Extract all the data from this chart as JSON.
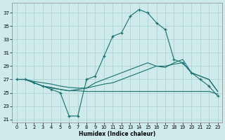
{
  "title": "",
  "xlabel": "Humidex (Indice chaleur)",
  "xlim": [
    -0.5,
    23.5
  ],
  "ylim": [
    20.5,
    38.5
  ],
  "yticks": [
    21,
    23,
    25,
    27,
    29,
    31,
    33,
    35,
    37
  ],
  "xticks": [
    0,
    1,
    2,
    3,
    4,
    5,
    6,
    7,
    8,
    9,
    10,
    11,
    12,
    13,
    14,
    15,
    16,
    17,
    18,
    19,
    20,
    21,
    22,
    23
  ],
  "bg_color": "#ceeaea",
  "line_color": "#1a7070",
  "grid_color": "#aacfcf",
  "lines": [
    {
      "x": [
        0,
        1,
        2,
        3,
        4,
        5,
        6,
        7,
        8,
        9,
        10,
        11,
        12,
        13,
        14,
        15,
        16,
        17,
        18,
        19,
        20,
        21,
        22,
        23
      ],
      "y": [
        27,
        27,
        26.5,
        26,
        25.5,
        25,
        21.5,
        21.5,
        27,
        27.5,
        30.5,
        33.5,
        34,
        36.5,
        37.5,
        37,
        35.5,
        34.5,
        30,
        29.5,
        28,
        27,
        26,
        24.5
      ],
      "marker": "+"
    },
    {
      "x": [
        0,
        1,
        2,
        3,
        4,
        5,
        6,
        7,
        8,
        9,
        10,
        11,
        12,
        13,
        14,
        15,
        16,
        17,
        18,
        19,
        20,
        21,
        22,
        23
      ],
      "y": [
        27,
        27,
        26.7,
        26.5,
        26.3,
        26,
        25.8,
        25.7,
        25.7,
        26,
        26.3,
        26.5,
        27,
        27.5,
        28,
        28.5,
        29,
        29,
        29.3,
        29.5,
        28,
        27.5,
        27,
        25.2
      ],
      "marker": null
    },
    {
      "x": [
        0,
        1,
        2,
        3,
        4,
        5,
        6,
        7,
        8,
        9,
        10,
        11,
        12,
        13,
        14,
        15,
        16,
        17,
        18,
        19,
        20,
        21,
        22,
        23
      ],
      "y": [
        27,
        27,
        26.5,
        26,
        25.8,
        25.5,
        25.3,
        25.3,
        25.2,
        25.2,
        25.2,
        25.2,
        25.2,
        25.2,
        25.2,
        25.2,
        25.2,
        25.2,
        25.2,
        25.2,
        25.2,
        25.2,
        25.2,
        24.8
      ],
      "marker": null
    },
    {
      "x": [
        0,
        1,
        2,
        3,
        4,
        5,
        6,
        7,
        8,
        9,
        10,
        11,
        12,
        13,
        14,
        15,
        16,
        17,
        18,
        19,
        20,
        21,
        22,
        23
      ],
      "y": [
        27,
        27,
        26.5,
        26,
        25.7,
        25.5,
        25.3,
        25.5,
        25.7,
        26.5,
        27,
        27.5,
        28,
        28.5,
        29,
        29.5,
        29,
        28.8,
        29.5,
        30,
        28,
        27.5,
        27,
        25.2
      ],
      "marker": null
    }
  ]
}
